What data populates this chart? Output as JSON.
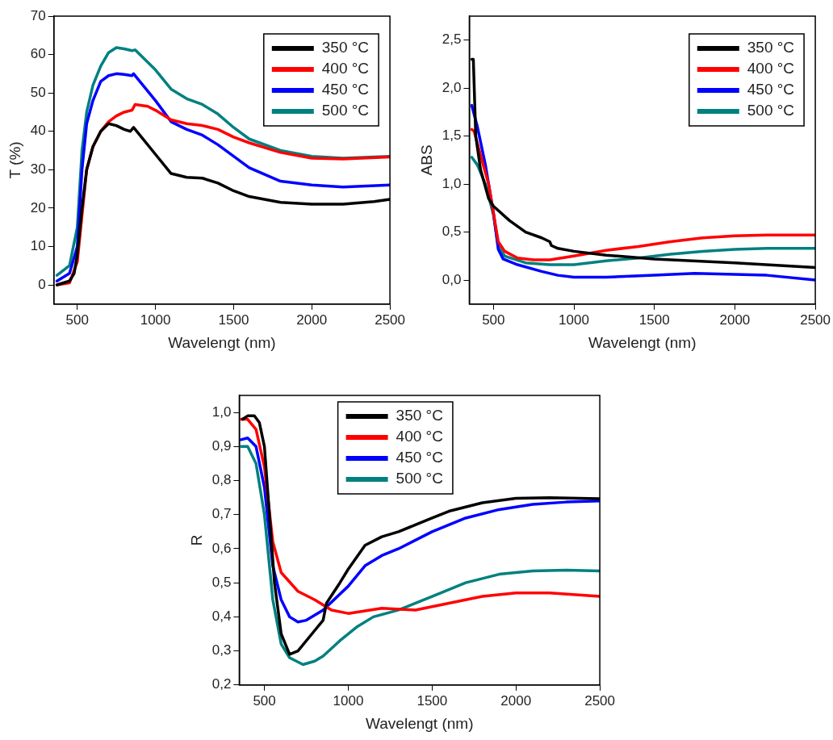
{
  "chart_data": [
    {
      "type": "line",
      "xlabel": "Wavelengt (nm)",
      "ylabel": "T (%)",
      "xlim": [
        350,
        2500
      ],
      "xticks": [
        500,
        1000,
        1500,
        2000,
        2500
      ],
      "ylim": [
        -5,
        70
      ],
      "yticks": [
        0,
        10,
        20,
        30,
        40,
        50,
        60,
        70
      ],
      "grid": false,
      "legend": "top right",
      "marker": "none",
      "line_style": "solid",
      "series": [
        {
          "name": "350 °C",
          "color": "#000000",
          "x": [
            370,
            450,
            480,
            500,
            530,
            560,
            600,
            650,
            700,
            750,
            800,
            840,
            860,
            900,
            1000,
            1100,
            1200,
            1300,
            1400,
            1500,
            1600,
            1800,
            2000,
            2200,
            2400,
            2500
          ],
          "values": [
            0,
            1,
            3,
            8,
            20,
            30,
            36,
            40,
            42,
            41.5,
            40.5,
            40,
            41,
            39,
            34,
            29,
            28,
            27.8,
            26.5,
            24.5,
            23,
            21.5,
            21,
            21,
            21.7,
            22.3
          ]
        },
        {
          "name": "400 °C",
          "color": "#ff0000",
          "x": [
            370,
            450,
            500,
            530,
            560,
            600,
            650,
            700,
            750,
            800,
            850,
            870,
            950,
            1000,
            1100,
            1200,
            1300,
            1400,
            1500,
            1600,
            1800,
            2000,
            2200,
            2500
          ],
          "values": [
            0,
            0.5,
            6,
            18,
            30,
            36,
            40,
            42.5,
            44,
            45,
            45.5,
            47,
            46.5,
            45.5,
            43,
            42,
            41.5,
            40.5,
            38.5,
            37,
            34.5,
            33,
            32.8,
            33.3
          ]
        },
        {
          "name": "450 °C",
          "color": "#0000ff",
          "x": [
            370,
            450,
            500,
            530,
            560,
            600,
            650,
            700,
            750,
            800,
            850,
            860,
            900,
            1000,
            1100,
            1200,
            1300,
            1400,
            1500,
            1600,
            1800,
            2000,
            2200,
            2500
          ],
          "values": [
            1,
            3,
            10,
            30,
            42,
            48,
            53,
            54.5,
            55,
            54.8,
            54.5,
            55,
            53,
            48,
            42.5,
            40.5,
            39,
            36.5,
            33.5,
            30.5,
            27,
            26,
            25.5,
            26
          ]
        },
        {
          "name": "500 °C",
          "color": "#008080",
          "x": [
            370,
            450,
            500,
            530,
            560,
            600,
            650,
            700,
            750,
            800,
            850,
            870,
            950,
            1000,
            1100,
            1200,
            1300,
            1400,
            1500,
            1600,
            1800,
            2000,
            2200,
            2500
          ],
          "values": [
            2.5,
            5,
            15,
            35,
            45,
            52,
            57,
            60.5,
            61.8,
            61.5,
            61,
            61.2,
            58,
            56,
            51,
            48.5,
            47,
            44.5,
            41,
            38,
            35,
            33.5,
            33,
            33.5
          ]
        }
      ]
    },
    {
      "type": "line",
      "xlabel": "Wavelengt (nm)",
      "ylabel": "ABS",
      "xlim": [
        350,
        2500
      ],
      "xticks": [
        500,
        1000,
        1500,
        2000,
        2500
      ],
      "ylim": [
        -0.25,
        2.75
      ],
      "yticks": [
        {
          "value": 0,
          "label": "0,0"
        },
        {
          "value": 0.5,
          "label": "0,5"
        },
        {
          "value": 1,
          "label": "1,0"
        },
        {
          "value": 1.5,
          "label": "1,5"
        },
        {
          "value": 2,
          "label": "2,0"
        },
        {
          "value": 2.5,
          "label": "2,5"
        }
      ],
      "grid": false,
      "legend": "top right",
      "marker": "none",
      "line_style": "solid",
      "series": [
        {
          "name": "350 °C",
          "color": "#000000",
          "x": [
            365,
            375,
            390,
            420,
            470,
            500,
            600,
            700,
            800,
            850,
            860,
            900,
            1000,
            1200,
            1500,
            2000,
            2500
          ],
          "values": [
            2.3,
            2.3,
            1.5,
            1.15,
            0.85,
            0.77,
            0.62,
            0.5,
            0.44,
            0.4,
            0.36,
            0.33,
            0.3,
            0.26,
            0.22,
            0.18,
            0.13
          ]
        },
        {
          "name": "400 °C",
          "color": "#ff0000",
          "x": [
            365,
            380,
            420,
            470,
            500,
            530,
            570,
            650,
            750,
            850,
            1000,
            1200,
            1400,
            1600,
            1800,
            2000,
            2200,
            2500
          ],
          "values": [
            1.57,
            1.55,
            1.3,
            1.0,
            0.7,
            0.4,
            0.3,
            0.23,
            0.21,
            0.21,
            0.25,
            0.31,
            0.35,
            0.4,
            0.44,
            0.46,
            0.47,
            0.47
          ]
        },
        {
          "name": "450 °C",
          "color": "#0000ff",
          "x": [
            365,
            400,
            450,
            500,
            530,
            560,
            650,
            800,
            900,
            1000,
            1200,
            1500,
            1750,
            2000,
            2200,
            2500
          ],
          "values": [
            1.82,
            1.6,
            1.2,
            0.7,
            0.32,
            0.22,
            0.16,
            0.09,
            0.05,
            0.03,
            0.03,
            0.05,
            0.07,
            0.06,
            0.05,
            0.0
          ]
        },
        {
          "name": "500 °C",
          "color": "#008080",
          "x": [
            365,
            400,
            450,
            500,
            530,
            570,
            700,
            850,
            1000,
            1200,
            1400,
            1600,
            1800,
            2000,
            2200,
            2500
          ],
          "values": [
            1.28,
            1.2,
            1.0,
            0.68,
            0.35,
            0.25,
            0.18,
            0.16,
            0.16,
            0.2,
            0.23,
            0.27,
            0.3,
            0.32,
            0.33,
            0.33
          ]
        }
      ]
    },
    {
      "type": "line",
      "xlabel": "Wavelengt (nm)",
      "ylabel": "R",
      "xlim": [
        350,
        2500
      ],
      "xticks": [
        500,
        1000,
        1500,
        2000,
        2500
      ],
      "ylim": [
        0.2,
        1.05
      ],
      "yticks": [
        {
          "value": 0.2,
          "label": "0,2"
        },
        {
          "value": 0.3,
          "label": "0,3"
        },
        {
          "value": 0.4,
          "label": "0,4"
        },
        {
          "value": 0.5,
          "label": "0,5"
        },
        {
          "value": 0.6,
          "label": "0,6"
        },
        {
          "value": 0.7,
          "label": "0,7"
        },
        {
          "value": 0.8,
          "label": "0,8"
        },
        {
          "value": 0.9,
          "label": "0,9"
        },
        {
          "value": 1,
          "label": "1,0"
        }
      ],
      "grid": false,
      "legend": "top",
      "marker": "none",
      "line_style": "solid",
      "series": [
        {
          "name": "350 °C",
          "color": "#000000",
          "x": [
            370,
            400,
            440,
            470,
            500,
            530,
            560,
            600,
            650,
            700,
            800,
            850,
            870,
            950,
            1000,
            1100,
            1200,
            1300,
            1400,
            1500,
            1600,
            1800,
            2000,
            2200,
            2500
          ],
          "values": [
            0.98,
            0.99,
            0.99,
            0.97,
            0.9,
            0.7,
            0.5,
            0.35,
            0.29,
            0.3,
            0.36,
            0.39,
            0.44,
            0.5,
            0.54,
            0.61,
            0.635,
            0.65,
            0.67,
            0.69,
            0.71,
            0.735,
            0.748,
            0.75,
            0.747
          ]
        },
        {
          "name": "400 °C",
          "color": "#ff0000",
          "x": [
            360,
            400,
            450,
            500,
            550,
            600,
            700,
            800,
            900,
            1000,
            1200,
            1400,
            1600,
            1800,
            2000,
            2200,
            2500
          ],
          "values": [
            0.98,
            0.98,
            0.95,
            0.84,
            0.62,
            0.53,
            0.475,
            0.45,
            0.42,
            0.41,
            0.425,
            0.42,
            0.44,
            0.46,
            0.47,
            0.47,
            0.46
          ]
        },
        {
          "name": "450 °C",
          "color": "#0000ff",
          "x": [
            360,
            400,
            450,
            500,
            550,
            600,
            650,
            700,
            750,
            850,
            1000,
            1100,
            1200,
            1300,
            1500,
            1700,
            1900,
            2100,
            2300,
            2500
          ],
          "values": [
            0.92,
            0.925,
            0.9,
            0.78,
            0.55,
            0.45,
            0.4,
            0.385,
            0.39,
            0.42,
            0.49,
            0.55,
            0.58,
            0.6,
            0.65,
            0.69,
            0.715,
            0.73,
            0.737,
            0.74
          ]
        },
        {
          "name": "500 °C",
          "color": "#008080",
          "x": [
            360,
            400,
            450,
            500,
            550,
            600,
            650,
            730,
            800,
            850,
            950,
            1050,
            1150,
            1300,
            1500,
            1700,
            1900,
            2100,
            2300,
            2500
          ],
          "values": [
            0.9,
            0.9,
            0.85,
            0.7,
            0.45,
            0.32,
            0.28,
            0.26,
            0.27,
            0.285,
            0.33,
            0.37,
            0.4,
            0.42,
            0.46,
            0.5,
            0.525,
            0.535,
            0.537,
            0.535
          ]
        }
      ]
    }
  ]
}
